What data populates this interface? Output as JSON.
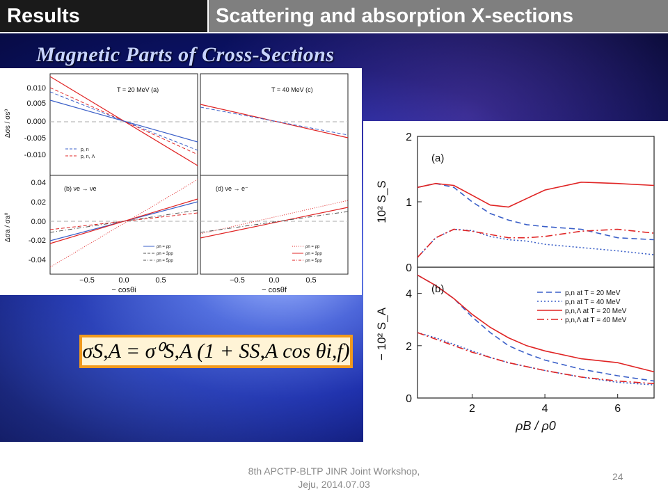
{
  "header": {
    "section": "Results",
    "title": "Scattering and absorption X-sections"
  },
  "subtitle": "Magnetic Parts of Cross-Sections",
  "formula": "σS,A = σ⁰S,A (1 + SS,A cos θi,f)",
  "footer": {
    "line1": "8th APCTP-BLTP JINR Joint Workshop,",
    "line2": "Jeju, 2014.07.03",
    "page": "24"
  },
  "colors": {
    "blue": "#3a5fc8",
    "red": "#e02424",
    "grey_header": "#7f7f7f",
    "dark_header": "#1a1a1a",
    "frame": "#f19a1d"
  },
  "left_figure": {
    "panels": [
      {
        "label": "T = 20 MeV  (a)",
        "ylabel": "Δσs / σs⁰"
      },
      {
        "label": "T = 40 MeV  (c)"
      },
      {
        "label": "(b)   νe → νe",
        "ylabel": "Δσa / σa⁰"
      },
      {
        "label": "(d)   νe → e⁻"
      }
    ],
    "top_yticks": [
      "0.010",
      "0.005",
      "0.000",
      "-0.005",
      "-0.010"
    ],
    "bottom_yticks": [
      "0.04",
      "0.02",
      "0.00",
      "-0.02",
      "-0.04"
    ],
    "xticks": [
      "−0.5",
      "0.0",
      "0.5"
    ],
    "xlabel": "− cosθi",
    "xlabel_right": "− cosθf",
    "legend_top": [
      "p, n",
      "p, n, Λ"
    ],
    "legend_bottom": [
      "ρn = ρp",
      "ρn = 3ρp",
      "ρn = 5ρp"
    ]
  },
  "chart_data": [
    {
      "type": "line",
      "title": "(a)",
      "xlabel": "",
      "ylabel": "10² S_S",
      "x": [
        0.5,
        1,
        1.5,
        2,
        2.5,
        3,
        3.5,
        4,
        5,
        6,
        7
      ],
      "xlim": [
        0.5,
        7
      ],
      "ylim": [
        0,
        2
      ],
      "yticks": [
        "0",
        "1",
        "2"
      ],
      "series": [
        {
          "name": "p,n at T = 20 MeV",
          "style": "dashed",
          "color": "#3a5fc8",
          "values": [
            1.22,
            1.28,
            1.22,
            1.0,
            0.82,
            0.72,
            0.65,
            0.62,
            0.58,
            0.45,
            0.42
          ]
        },
        {
          "name": "p,n at T = 40 MeV",
          "style": "dotted",
          "color": "#3a5fc8",
          "values": [
            0.15,
            0.45,
            0.58,
            0.56,
            0.47,
            0.42,
            0.4,
            0.35,
            0.3,
            0.25,
            0.19
          ]
        },
        {
          "name": "p,n,Λ at T = 20 MeV",
          "style": "solid",
          "color": "#e02424",
          "values": [
            1.22,
            1.28,
            1.25,
            1.1,
            0.95,
            0.92,
            1.05,
            1.18,
            1.3,
            1.28,
            1.25
          ]
        },
        {
          "name": "p,n,Λ at T = 40 MeV",
          "style": "dashdot",
          "color": "#e02424",
          "values": [
            0.15,
            0.45,
            0.58,
            0.55,
            0.5,
            0.45,
            0.45,
            0.47,
            0.55,
            0.58,
            0.52
          ]
        }
      ]
    },
    {
      "type": "line",
      "title": "(b)",
      "xlabel": "ρB / ρ0",
      "ylabel": "− 10² S_A",
      "x": [
        0.5,
        1,
        1.5,
        2,
        2.5,
        3,
        3.5,
        4,
        5,
        6,
        7
      ],
      "xlim": [
        0.5,
        7
      ],
      "xticks": [
        "2",
        "4",
        "6"
      ],
      "ylim": [
        0,
        5
      ],
      "yticks": [
        "0",
        "2",
        "4"
      ],
      "legend": "top-right",
      "series": [
        {
          "name": "p,n at T = 20 MeV",
          "style": "dashed",
          "color": "#3a5fc8",
          "values": [
            4.7,
            4.3,
            3.8,
            3.1,
            2.5,
            2.0,
            1.7,
            1.45,
            1.1,
            0.85,
            0.65
          ]
        },
        {
          "name": "p,n at T = 40 MeV",
          "style": "dotted",
          "color": "#3a5fc8",
          "values": [
            2.5,
            2.3,
            2.05,
            1.8,
            1.55,
            1.35,
            1.2,
            1.05,
            0.8,
            0.6,
            0.5
          ]
        },
        {
          "name": "p,n,Λ at T = 20 MeV",
          "style": "solid",
          "color": "#e02424",
          "values": [
            4.7,
            4.3,
            3.8,
            3.2,
            2.7,
            2.3,
            2.0,
            1.8,
            1.5,
            1.35,
            1.0
          ]
        },
        {
          "name": "p,n,Λ at T = 40 MeV",
          "style": "dashdot",
          "color": "#e02424",
          "values": [
            2.5,
            2.25,
            2.0,
            1.75,
            1.55,
            1.35,
            1.2,
            1.05,
            0.8,
            0.65,
            0.55
          ]
        }
      ]
    }
  ]
}
